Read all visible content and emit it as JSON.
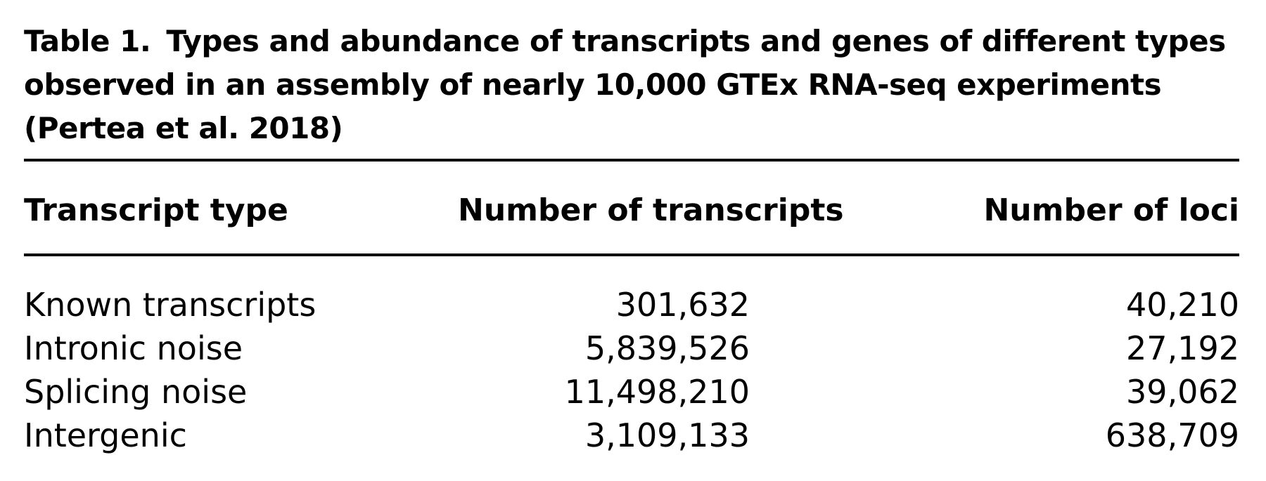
{
  "table": {
    "label": "Table 1.",
    "caption": "Types and abundance of transcripts and genes of different types observed in an assembly of nearly 10,000 GTEx RNA-seq experiments (Pertea et al. 2018)",
    "header": [
      "Transcript type",
      "Number of transcripts",
      "Number of loci"
    ],
    "rows": [
      [
        "Known transcripts",
        "301,632",
        "40,210"
      ],
      [
        "Intronic noise",
        "5,839,526",
        "27,192"
      ],
      [
        "Splicing noise",
        "11,498,210",
        "39,062"
      ],
      [
        "Intergenic",
        "3,109,133",
        "638,709"
      ]
    ]
  }
}
